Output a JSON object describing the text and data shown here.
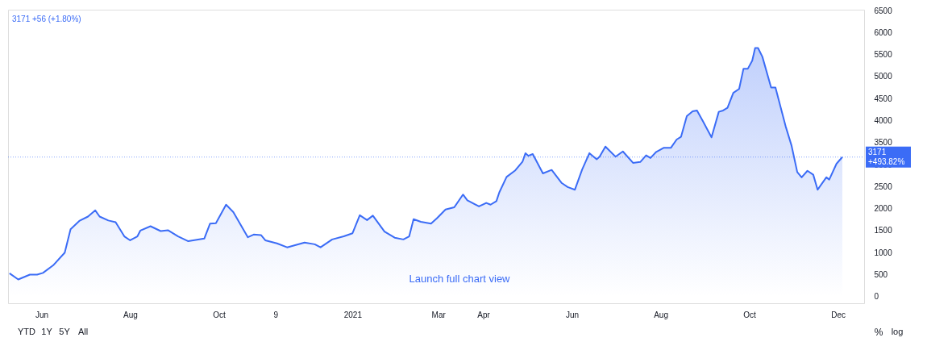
{
  "chart_data": {
    "type": "area",
    "x": [
      "2020-05-10",
      "2020-05-16",
      "2020-05-24",
      "2020-05-29",
      "2020-06-02",
      "2020-06-09",
      "2020-06-17",
      "2020-06-21",
      "2020-06-27",
      "2020-07-03",
      "2020-07-08",
      "2020-07-11",
      "2020-07-17",
      "2020-07-22",
      "2020-07-28",
      "2020-08-01",
      "2020-08-06",
      "2020-08-08",
      "2020-08-15",
      "2020-08-22",
      "2020-08-27",
      "2020-09-03",
      "2020-09-10",
      "2020-09-21",
      "2020-09-25",
      "2020-09-29",
      "2020-10-06",
      "2020-10-11",
      "2020-10-21",
      "2020-10-25",
      "2020-10-30",
      "2020-11-02",
      "2020-11-10",
      "2020-11-17",
      "2020-11-29",
      "2020-12-06",
      "2020-12-10",
      "2020-12-18",
      "2020-12-26",
      "2021-01-01",
      "2021-01-06",
      "2021-01-11",
      "2021-01-15",
      "2021-01-23",
      "2021-01-30",
      "2021-02-05",
      "2021-02-09",
      "2021-02-12",
      "2021-02-17",
      "2021-02-24",
      "2021-02-28",
      "2021-03-06",
      "2021-03-12",
      "2021-03-18",
      "2021-03-21",
      "2021-03-29",
      "2021-04-03",
      "2021-04-06",
      "2021-04-10",
      "2021-04-12",
      "2021-04-17",
      "2021-04-23",
      "2021-04-28",
      "2021-04-30",
      "2021-05-02",
      "2021-05-05",
      "2021-05-12",
      "2021-05-18",
      "2021-05-25",
      "2021-05-29",
      "2021-06-03",
      "2021-06-08",
      "2021-06-13",
      "2021-06-18",
      "2021-06-20",
      "2021-06-24",
      "2021-07-01",
      "2021-07-06",
      "2021-07-13",
      "2021-07-18",
      "2021-07-22",
      "2021-07-25",
      "2021-07-29",
      "2021-08-03",
      "2021-08-08",
      "2021-08-12",
      "2021-08-15",
      "2021-08-19",
      "2021-08-23",
      "2021-08-26",
      "2021-08-30",
      "2021-09-05",
      "2021-09-10",
      "2021-09-13",
      "2021-09-16",
      "2021-09-20",
      "2021-09-24",
      "2021-09-27",
      "2021-09-30",
      "2021-10-03",
      "2021-10-05",
      "2021-10-07",
      "2021-10-10",
      "2021-10-16",
      "2021-10-19",
      "2021-10-26",
      "2021-10-30",
      "2021-11-03",
      "2021-11-06",
      "2021-11-10",
      "2021-11-14",
      "2021-11-17",
      "2021-11-23",
      "2021-11-25",
      "2021-11-30",
      "2021-12-04"
    ],
    "series": [
      {
        "color": "#3b6cf6",
        "values": [
          530,
          390,
          500,
          500,
          540,
          710,
          1000,
          1530,
          1720,
          1820,
          1960,
          1820,
          1730,
          1690,
          1370,
          1280,
          1370,
          1500,
          1600,
          1490,
          1510,
          1370,
          1260,
          1320,
          1660,
          1670,
          2090,
          1920,
          1350,
          1410,
          1400,
          1280,
          1210,
          1120,
          1230,
          1190,
          1120,
          1300,
          1370,
          1440,
          1850,
          1740,
          1840,
          1480,
          1340,
          1300,
          1370,
          1760,
          1700,
          1660,
          1780,
          1980,
          2030,
          2320,
          2190,
          2050,
          2130,
          2090,
          2170,
          2370,
          2720,
          2870,
          3070,
          3260,
          3200,
          3240,
          2800,
          2880,
          2580,
          2490,
          2430,
          2890,
          3260,
          3120,
          3180,
          3410,
          3180,
          3300,
          3040,
          3060,
          3210,
          3150,
          3290,
          3380,
          3380,
          3570,
          3630,
          4100,
          4210,
          4230,
          3990,
          3620,
          4200,
          4230,
          4290,
          4630,
          4720,
          5180,
          5180,
          5360,
          5650,
          5650,
          5450,
          4750,
          4750,
          3870,
          3440,
          2830,
          2710,
          2860,
          2770,
          2430,
          2710,
          2660,
          3020,
          3171
        ]
      }
    ],
    "xlim": [
      "2020-05-09",
      "2021-12-19"
    ],
    "xticks": [
      {
        "value": "2020-06-01",
        "label": "Jun"
      },
      {
        "value": "2020-08-01",
        "label": "Aug"
      },
      {
        "value": "2020-10-01",
        "label": "Oct"
      },
      {
        "value": "2020-11-09",
        "label": "9"
      },
      {
        "value": "2021-01-01",
        "label": "2021"
      },
      {
        "value": "2021-03-01",
        "label": "Mar"
      },
      {
        "value": "2021-04-01",
        "label": "Apr"
      },
      {
        "value": "2021-06-01",
        "label": "Jun"
      },
      {
        "value": "2021-08-01",
        "label": "Aug"
      },
      {
        "value": "2021-10-01",
        "label": "Oct"
      },
      {
        "value": "2021-12-01",
        "label": "Dec"
      }
    ],
    "ylim": [
      -150,
      6520
    ],
    "yticks": [
      0,
      500,
      1000,
      1500,
      2000,
      2500,
      3000,
      3500,
      4000,
      4500,
      5000,
      5500,
      6000,
      6500
    ],
    "grid": false,
    "ref_lines": [
      {
        "axis": "y",
        "value": 3171,
        "label": "3171 +493.82%",
        "color": "#3b6cf6",
        "line_style": "dotted"
      }
    ],
    "annotations": [
      "3171 +56 (+1.80%)",
      "Launch full chart view",
      "YTD",
      "1Y",
      "5Y",
      "All",
      "%",
      "log"
    ]
  }
}
